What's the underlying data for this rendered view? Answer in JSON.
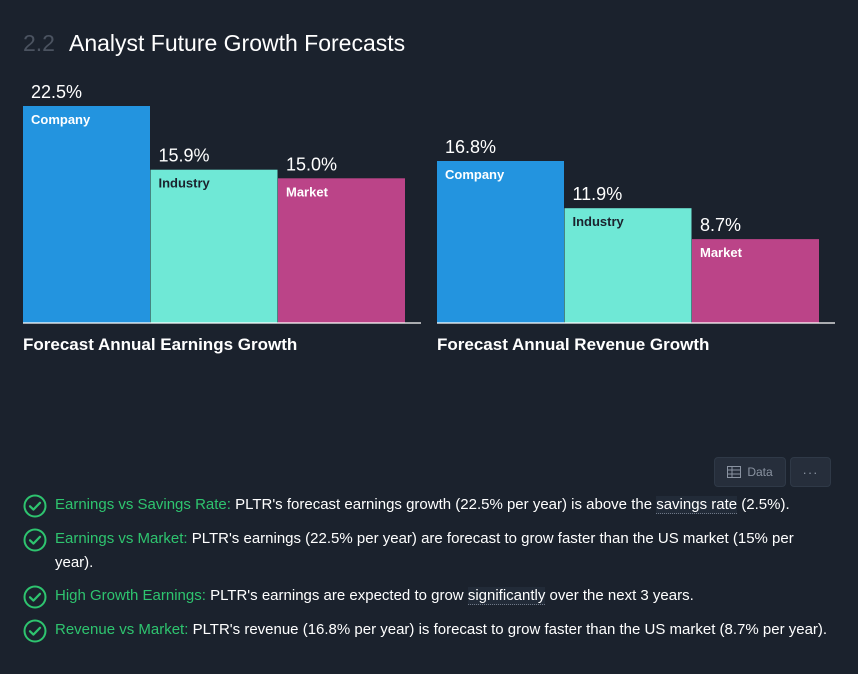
{
  "section": {
    "number": "2.2",
    "title": "Analyst Future Growth Forecasts"
  },
  "colors": {
    "company": "#2394df",
    "industry": "#6fe8d6",
    "market": "#bb4488",
    "check": "#2ec46f",
    "baseline": "#ffffff"
  },
  "chart_data": [
    {
      "type": "bar",
      "title": "Forecast Annual Earnings Growth",
      "categories": [
        "Company",
        "Industry",
        "Market"
      ],
      "values": [
        22.5,
        15.9,
        15.0
      ],
      "value_labels": [
        "22.5%",
        "15.9%",
        "15.0%"
      ],
      "unit": "%",
      "ylim": [
        0,
        22.5
      ],
      "grid": false,
      "legend": "none"
    },
    {
      "type": "bar",
      "title": "Forecast Annual Revenue Growth",
      "categories": [
        "Company",
        "Industry",
        "Market"
      ],
      "values": [
        16.8,
        11.9,
        8.7
      ],
      "value_labels": [
        "16.8%",
        "11.9%",
        "8.7%"
      ],
      "unit": "%",
      "ylim": [
        0,
        22.5
      ],
      "grid": false,
      "legend": "none"
    }
  ],
  "toolbar": {
    "data_label": "Data",
    "data_icon": "table-icon",
    "more_label": "···"
  },
  "checks": [
    {
      "label": "Earnings vs Savings Rate:",
      "before": "PLTR's forecast earnings growth (22.5% per year) is above the",
      "link": "savings rate",
      "after": "(2.5%)."
    },
    {
      "label": "Earnings vs Market:",
      "before": "PLTR's earnings (22.5% per year) are forecast to grow faster than the US market (15% per year).",
      "link": "",
      "after": ""
    },
    {
      "label": "High Growth Earnings:",
      "before": "PLTR's earnings are expected to grow",
      "link": "significantly",
      "after": "over the next 3 years."
    },
    {
      "label": "Revenue vs Market:",
      "before": "PLTR's revenue (16.8% per year) is forecast to grow faster than the US market (8.7% per year).",
      "link": "",
      "after": ""
    }
  ]
}
